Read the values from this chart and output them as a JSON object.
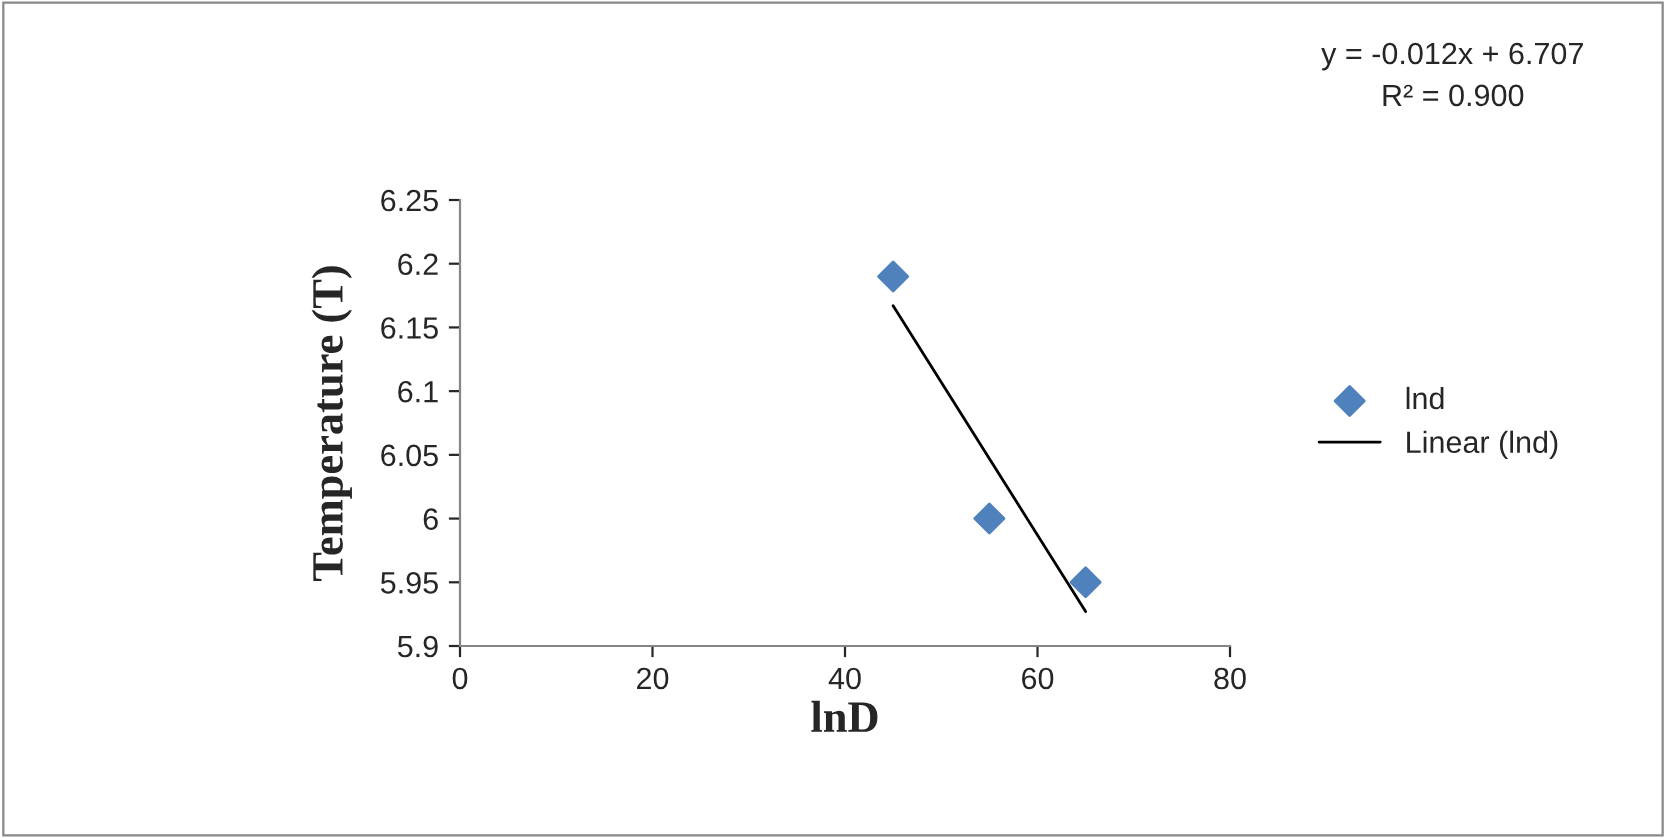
{
  "chart_data": {
    "type": "scatter",
    "xlabel": "lnD",
    "ylabel": "Temperature (T)",
    "series": [
      {
        "name": "lnd",
        "color": "#4f81bd",
        "marker": "diamond",
        "x": [
          45,
          55,
          65
        ],
        "values": [
          6.19,
          6.0,
          5.95
        ]
      },
      {
        "name": "Linear (lnd)",
        "type": "line",
        "color": "#000000",
        "marker": "none",
        "line_style": "solid",
        "x": [
          45,
          65
        ],
        "values": [
          6.167,
          5.927
        ]
      }
    ],
    "xlim": [
      0,
      80
    ],
    "xticks": [
      0,
      20,
      40,
      60,
      80
    ],
    "ylim": [
      5.9,
      6.25
    ],
    "yticks": [
      5.9,
      5.95,
      6,
      6.05,
      6.1,
      6.15,
      6.2,
      6.25
    ],
    "annotations": [
      "y = -0.012x + 6.707",
      "R² = 0.900"
    ],
    "grid": false,
    "legend": "right"
  }
}
